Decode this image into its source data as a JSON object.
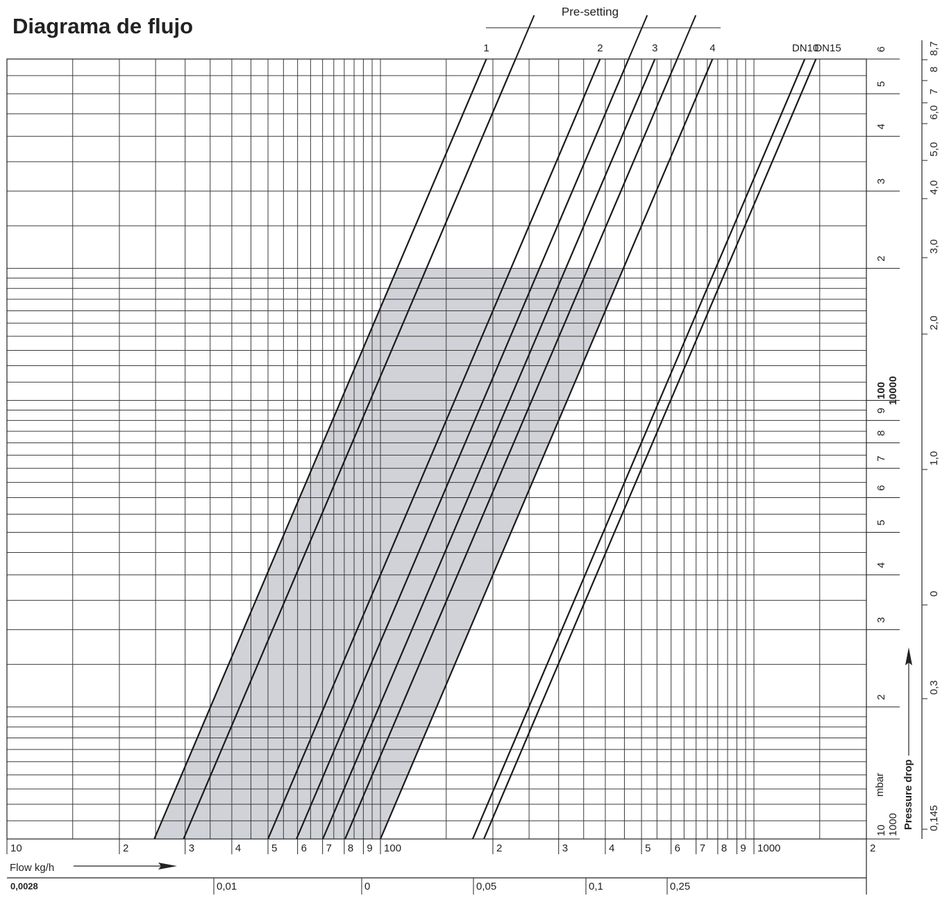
{
  "chart_data": {
    "type": "line",
    "title": "Diagrama de flujo",
    "annotation": "Pre-setting",
    "x_label": "Flow  kg/h",
    "y_label": "Pressure drop",
    "y_unit": "mbar",
    "log_x": true,
    "log_y": true,
    "xlim": [
      10,
      2000
    ],
    "ylim": [
      10,
      600
    ],
    "y2lim": [
      1000,
      60000
    ],
    "xticks": [
      10,
      {
        "value": 20,
        "label": "2"
      },
      {
        "value": 30,
        "label": "3"
      },
      {
        "value": 40,
        "label": "4"
      },
      {
        "value": 50,
        "label": "5"
      },
      {
        "value": 60,
        "label": "6"
      },
      {
        "value": 70,
        "label": "7"
      },
      {
        "value": 80,
        "label": "8"
      },
      {
        "value": 90,
        "label": "9"
      },
      100,
      {
        "value": 200,
        "label": "2"
      },
      {
        "value": 300,
        "label": "3"
      },
      {
        "value": 400,
        "label": "4"
      },
      {
        "value": 500,
        "label": "5"
      },
      {
        "value": 600,
        "label": "6"
      },
      {
        "value": 700,
        "label": "7"
      },
      {
        "value": 800,
        "label": "8"
      },
      {
        "value": 900,
        "label": "9"
      },
      1000,
      {
        "value": 2000,
        "label": "2"
      }
    ],
    "yticks": [
      10,
      {
        "value": 20,
        "label": "2"
      },
      {
        "value": 30,
        "label": "3"
      },
      {
        "value": 40,
        "label": "4"
      },
      {
        "value": 50,
        "label": "5"
      },
      {
        "value": 60,
        "label": "6"
      },
      {
        "value": 70,
        "label": "7"
      },
      {
        "value": 80,
        "label": "8"
      },
      {
        "value": 90,
        "label": "9"
      },
      100,
      {
        "value": 200,
        "label": "2"
      },
      {
        "value": 300,
        "label": "3"
      },
      {
        "value": 400,
        "label": "4"
      },
      {
        "value": 500,
        "label": "5"
      },
      {
        "value": 600,
        "label": "6"
      }
    ],
    "y2ticks": [
      1000,
      10000
    ],
    "xgrid": [
      10,
      15,
      20,
      25,
      30,
      35,
      40,
      45,
      50,
      55,
      60,
      65,
      70,
      75,
      80,
      85,
      90,
      95,
      100,
      150,
      200,
      250,
      300,
      350,
      400,
      450,
      500,
      550,
      600,
      650,
      700,
      750,
      800,
      850,
      900,
      950,
      1000,
      1500,
      2000
    ],
    "ygrid": [
      10,
      11,
      12,
      13,
      14,
      15,
      16,
      17,
      18,
      19,
      20,
      25,
      30,
      35,
      40,
      45,
      50,
      55,
      60,
      65,
      70,
      75,
      80,
      85,
      90,
      95,
      100,
      110,
      120,
      130,
      140,
      150,
      160,
      170,
      180,
      190,
      200,
      250,
      300,
      350,
      400,
      450,
      500,
      550,
      600
    ],
    "grid": true,
    "band": {
      "ylim": [
        10,
        200
      ],
      "color": "#d0d2d7"
    },
    "series": [
      {
        "name": "1",
        "color": "#1a1a1a",
        "x": [
          24.8,
          192.1
        ],
        "values": [
          10,
          600
        ]
      },
      {
        "color": "#1a1a1a",
        "x": [
          29.7,
          230
        ],
        "values": [
          10,
          600
        ]
      },
      {
        "name": "2",
        "color": "#1a1a1a",
        "x": [
          50,
          387.3
        ],
        "values": [
          10,
          600
        ]
      },
      {
        "color": "#1a1a1a",
        "x": [
          59.6,
          461.7
        ],
        "values": [
          10,
          600
        ]
      },
      {
        "name": "3",
        "color": "#1a1a1a",
        "x": [
          70.1,
          543
        ],
        "values": [
          10,
          600
        ]
      },
      {
        "color": "#1a1a1a",
        "x": [
          80.4,
          622.8
        ],
        "values": [
          10,
          600
        ]
      },
      {
        "name": "4",
        "color": "#1a1a1a",
        "x": [
          100,
          774.6
        ],
        "values": [
          10,
          600
        ]
      },
      {
        "name": "DN10",
        "color": "#1a1a1a",
        "x": [
          176.6,
          1368
        ],
        "values": [
          10,
          600
        ]
      },
      {
        "name": "DN15",
        "color": "#1a1a1a",
        "x": [
          189.2,
          1465.5
        ],
        "values": [
          10,
          600
        ]
      }
    ],
    "bottom_scale": [
      "0,0028",
      "0,01",
      "0",
      "0,05",
      "0,1",
      "0,25"
    ],
    "right_scale": [
      "8,7",
      "8",
      "7",
      "6,0",
      "5,0",
      "4,0",
      "3,0",
      "2,0",
      "1,0",
      "0",
      "0,3",
      "0,145"
    ]
  }
}
